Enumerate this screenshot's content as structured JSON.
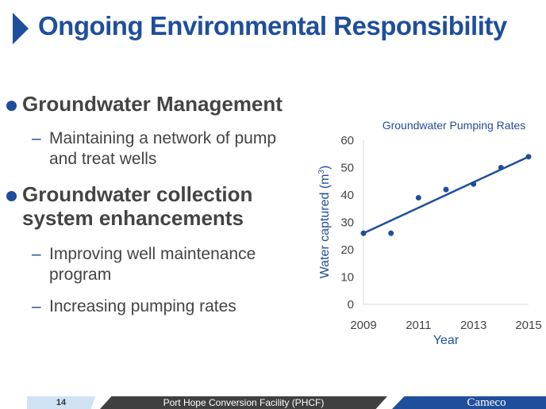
{
  "slide": {
    "title": "Ongoing Environmental Responsibility",
    "bullets": [
      {
        "text": "Groundwater Management",
        "sub": [
          {
            "lines": [
              "Maintaining a network of pump",
              "and treat wells"
            ]
          }
        ]
      },
      {
        "lines": [
          "Groundwater collection",
          "system enhancements"
        ],
        "sub": [
          {
            "lines": [
              "Improving well maintenance",
              "program"
            ]
          },
          {
            "lines": [
              "Increasing pumping rates"
            ]
          }
        ]
      }
    ]
  },
  "footer": {
    "page_number": "14",
    "center_text": "Port Hope Conversion Facility (PHCF)",
    "logo_text": "Cameco"
  },
  "colors": {
    "accent": "#1f4e9c",
    "text": "#444444",
    "footer_dark": "#404040",
    "footer_light": "#cfe3f4"
  },
  "chart_data": {
    "type": "scatter",
    "title": "Groundwater Pumping Rates",
    "xlabel": "Year",
    "ylabel_main": "Water captured (m",
    "ylabel_sup": "3",
    "ylabel_end": ")",
    "x": [
      2009,
      2010,
      2011,
      2012,
      2013,
      2014,
      2015
    ],
    "y": [
      26,
      26,
      39,
      42,
      44,
      50,
      54
    ],
    "trendline": {
      "x": [
        2009,
        2015
      ],
      "y": [
        26,
        54
      ]
    },
    "xticks": [
      "2009",
      "2011",
      "2013",
      "2015"
    ],
    "xtick_values": [
      2009,
      2011,
      2013,
      2015
    ],
    "yticks": [
      "0",
      "10",
      "20",
      "30",
      "40",
      "50",
      "60"
    ],
    "ylim": [
      0,
      60
    ],
    "xlim": [
      2009,
      2015
    ],
    "grid": false,
    "color": "#1f4e9c"
  }
}
